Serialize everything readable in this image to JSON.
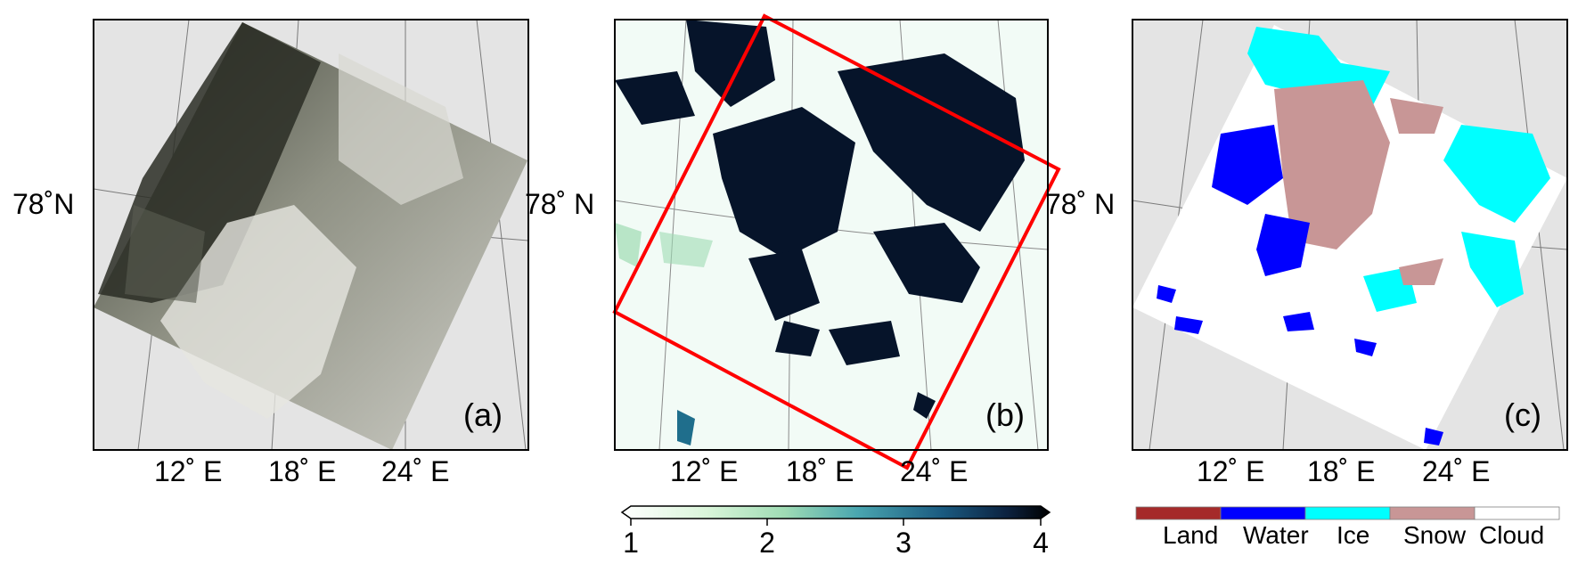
{
  "panels": [
    {
      "id": "a",
      "label": "(a)",
      "lat_label": "78˚N",
      "lon_labels": [
        "12˚ E",
        "18˚ E",
        "24˚ E"
      ]
    },
    {
      "id": "b",
      "label": "(b)",
      "lat_label": "78˚ N",
      "lon_labels": [
        "12˚ E",
        "18˚ E",
        "24˚ E"
      ]
    },
    {
      "id": "c",
      "label": "(c)",
      "lat_label": "78˚ N",
      "lon_labels": [
        "12˚ E",
        "18˚ E",
        "24˚ E"
      ]
    }
  ],
  "colorbar": {
    "ticks": [
      "1",
      "2",
      "3",
      "4"
    ],
    "range": [
      1,
      4
    ],
    "colors": [
      "#ffffff",
      "#c8f0c8",
      "#5fb4b4",
      "#1f6e8c",
      "#0d2a4a",
      "#000000"
    ]
  },
  "legend": {
    "items": [
      {
        "name": "Land",
        "color": "#a52a2a"
      },
      {
        "name": "Water",
        "color": "#0000ff"
      },
      {
        "name": "Ice",
        "color": "#00ffff"
      },
      {
        "name": "Snow",
        "color": "#c89696"
      },
      {
        "name": "Cloud",
        "color": "#ffffff"
      }
    ]
  },
  "colors": {
    "map_background": "#e4e4e4",
    "outline": "#ff0000",
    "frame": "#000000"
  }
}
